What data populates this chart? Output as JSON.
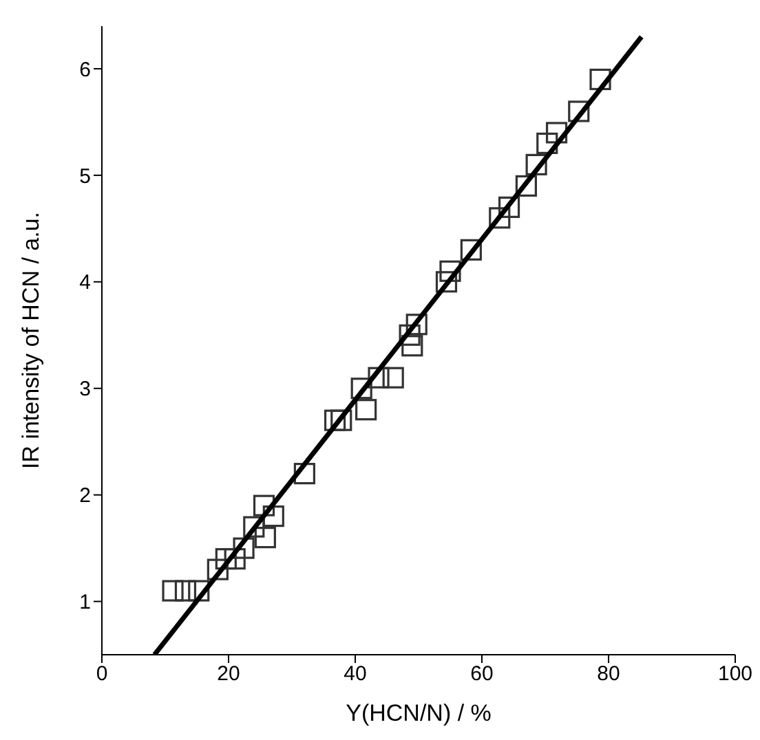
{
  "chart_data": {
    "type": "scatter",
    "xlabel": "Y(HCN/N) / %",
    "ylabel": "IR intensity of HCN / a.u.",
    "xlim": [
      0,
      100
    ],
    "xticks": [
      0,
      20,
      40,
      60,
      80,
      100
    ],
    "ylim": [
      0.5,
      6.4
    ],
    "yticks": [
      1,
      2,
      3,
      4,
      5,
      6
    ],
    "series": [
      {
        "marker": "square",
        "color": "#333333",
        "x": [
          11.2,
          13.2,
          15.3,
          18.3,
          19.6,
          21,
          22.4,
          24,
          25.6,
          25.8,
          27.1,
          32,
          36.8,
          37.8,
          41,
          41.7,
          43.7,
          46,
          48.6,
          49,
          49.7,
          54.4,
          55,
          58.3,
          62.8,
          64.3,
          67,
          68.6,
          70.3,
          71.8,
          75.3,
          78.7
        ],
        "values": [
          1.1,
          1.1,
          1.1,
          1.3,
          1.4,
          1.4,
          1.5,
          1.7,
          1.9,
          1.6,
          1.8,
          2.2,
          2.7,
          2.7,
          3.0,
          2.8,
          3.1,
          3.1,
          3.5,
          3.4,
          3.6,
          4.0,
          4.1,
          4.3,
          4.6,
          4.7,
          4.9,
          5.1,
          5.3,
          5.4,
          5.6,
          5.9
        ]
      },
      {
        "type": "line",
        "marker": "none",
        "line_style": "solid",
        "color": "#000000",
        "x": [
          8.3,
          85.2
        ],
        "values": [
          0.5,
          6.3
        ]
      }
    ]
  }
}
